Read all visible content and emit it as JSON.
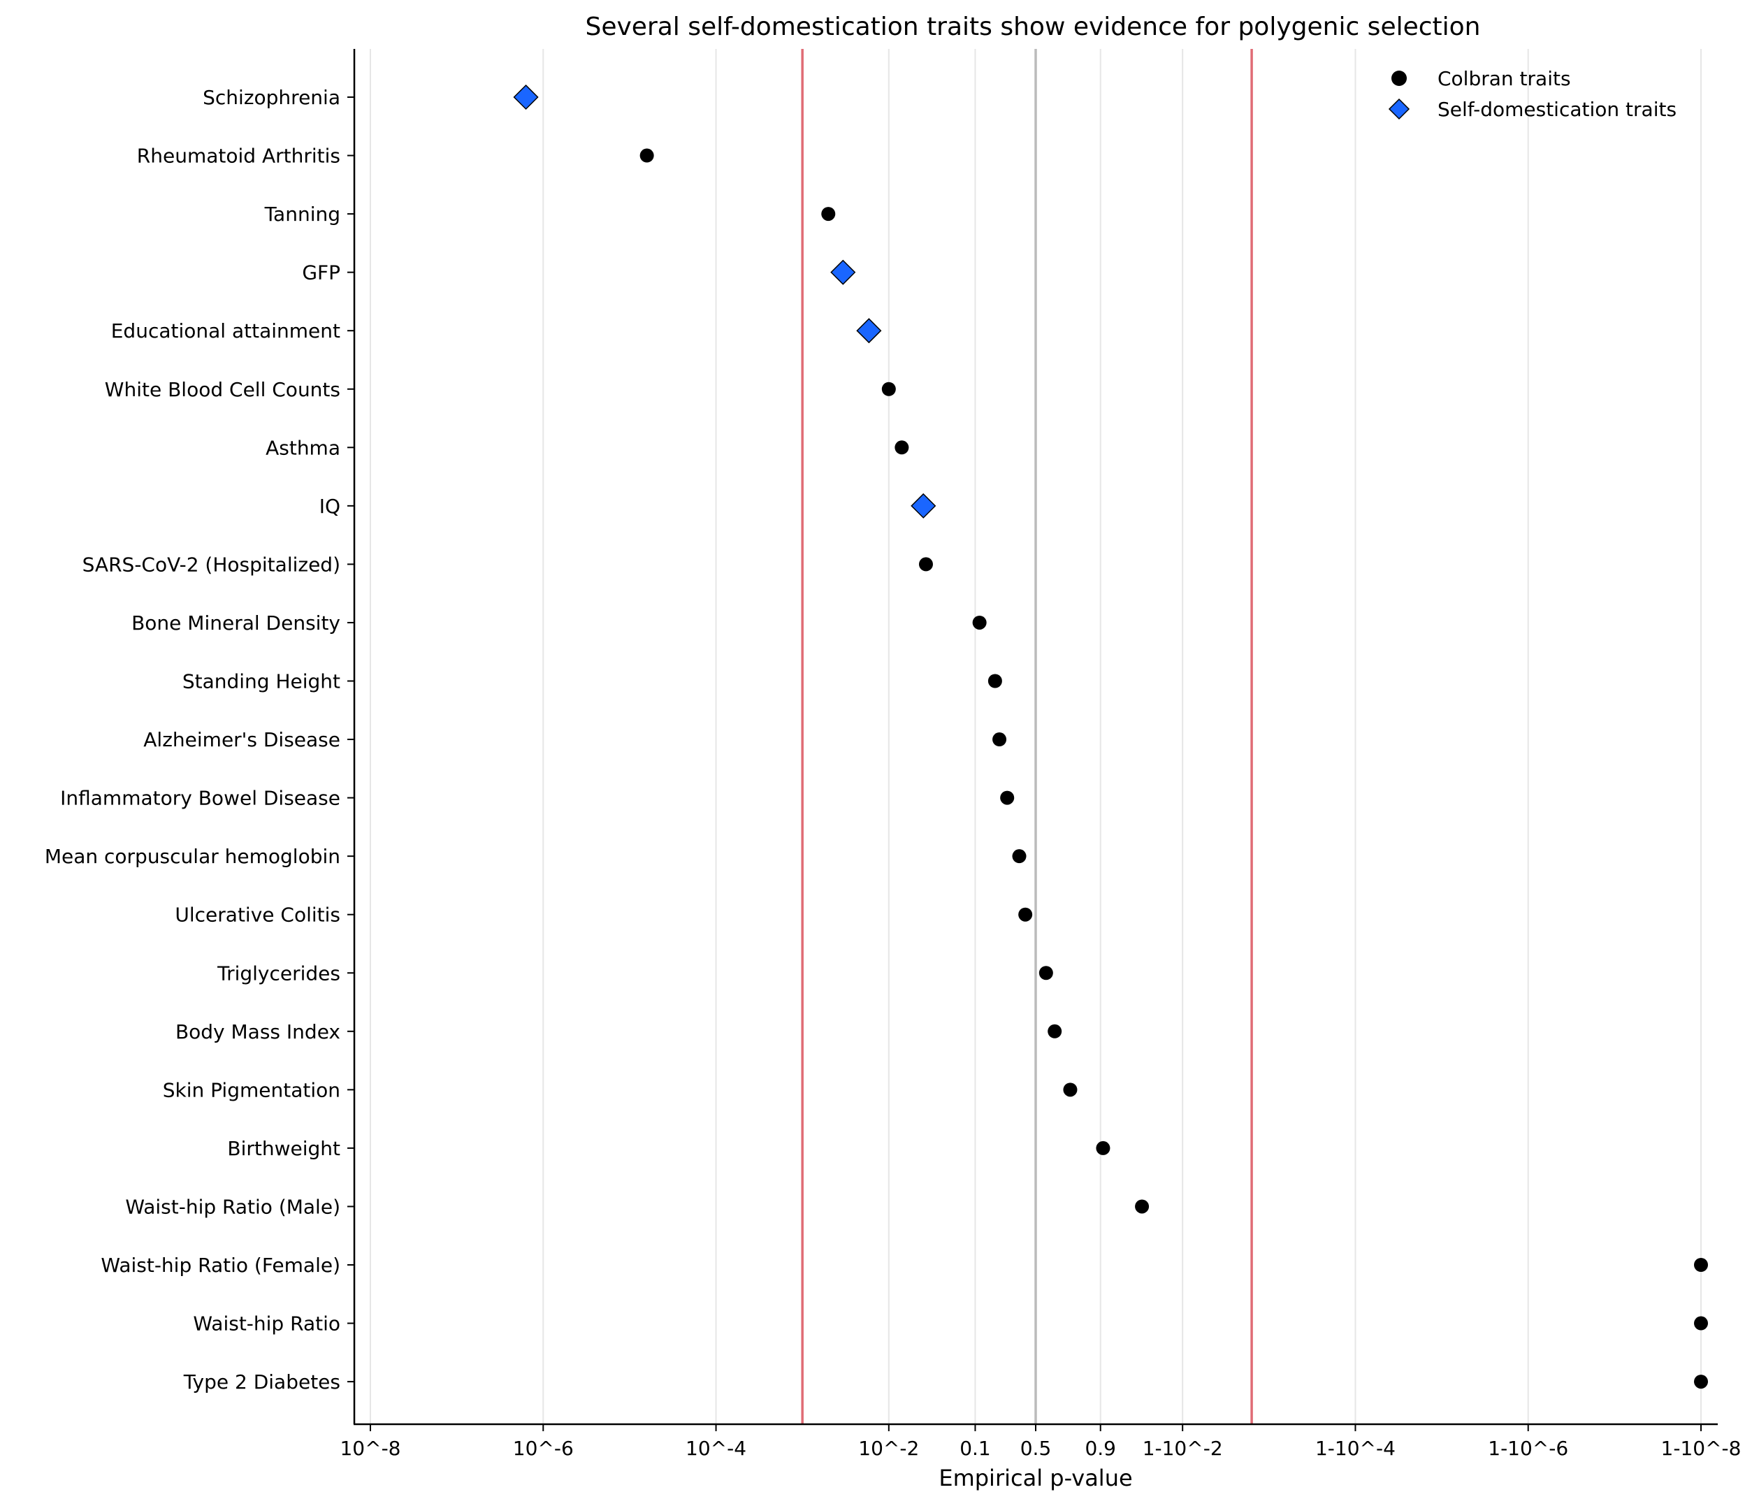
{
  "chart_data": {
    "type": "scatter",
    "title": "Several self-domestication traits show evidence for polygenic selection",
    "xlabel": "Empirical p-value",
    "ylabel": "",
    "x_scale": "log-odds",
    "xlim": [
      -8.1,
      8.1
    ],
    "xticks": [
      {
        "label": "10^-8",
        "value": -8
      },
      {
        "label": "10^-6",
        "value": -6
      },
      {
        "label": "10^-4",
        "value": -4
      },
      {
        "label": "10^-2",
        "value": -2
      },
      {
        "label": "0.1",
        "value": -1
      },
      {
        "label": "0.5",
        "value": -0.3
      },
      {
        "label": "0.9",
        "value": 0.45
      },
      {
        "label": "1-10^-2",
        "value": 1.4
      },
      {
        "label": "1-10^-4",
        "value": 3.4
      },
      {
        "label": "1-10^-6",
        "value": 5.4
      },
      {
        "label": "1-10^-8",
        "value": 7.4
      }
    ],
    "reference_lines": [
      {
        "value": -3.0,
        "color": "#e06c75",
        "kind": "threshold"
      },
      {
        "value": -0.3,
        "color": "#bbbbbb",
        "kind": "null"
      },
      {
        "value": 2.2,
        "color": "#e06c75",
        "kind": "threshold"
      }
    ],
    "categories": [
      "Schizophrenia",
      "Rheumatoid Arthritis",
      "Tanning",
      "GFP",
      "Educational attainment",
      "White Blood Cell Counts",
      "Asthma",
      "IQ",
      "SARS-CoV-2 (Hospitalized)",
      "Bone Mineral Density",
      "Standing Height",
      "Alzheimer's Disease",
      "Inflammatory Bowel Disease",
      "Mean corpuscular hemoglobin",
      "Ulcerative Colitis",
      "Triglycerides",
      "Body Mass Index",
      "Skin Pigmentation",
      "Birthweight",
      "Waist-hip Ratio (Male)",
      "Waist-hip Ratio (Female)",
      "Waist-hip Ratio",
      "Type 2 Diabetes"
    ],
    "series": [
      {
        "name": "Colbran traits",
        "marker": "circle",
        "color": "#000000",
        "points": [
          {
            "trait": "Rheumatoid Arthritis",
            "x": -4.8
          },
          {
            "trait": "Tanning",
            "x": -2.7
          },
          {
            "trait": "White Blood Cell Counts",
            "x": -2.0
          },
          {
            "trait": "Asthma",
            "x": -1.85
          },
          {
            "trait": "SARS-CoV-2 (Hospitalized)",
            "x": -1.57
          },
          {
            "trait": "Bone Mineral Density",
            "x": -0.95
          },
          {
            "trait": "Standing Height",
            "x": -0.77
          },
          {
            "trait": "Alzheimer's Disease",
            "x": -0.72
          },
          {
            "trait": "Inflammatory Bowel Disease",
            "x": -0.63
          },
          {
            "trait": "Mean corpuscular hemoglobin",
            "x": -0.49
          },
          {
            "trait": "Ulcerative Colitis",
            "x": -0.42
          },
          {
            "trait": "Triglycerides",
            "x": -0.18
          },
          {
            "trait": "Body Mass Index",
            "x": -0.08
          },
          {
            "trait": "Skin Pigmentation",
            "x": 0.1
          },
          {
            "trait": "Birthweight",
            "x": 0.48
          },
          {
            "trait": "Waist-hip Ratio (Male)",
            "x": 0.93
          },
          {
            "trait": "Waist-hip Ratio (Female)",
            "x": 7.4
          },
          {
            "trait": "Waist-hip Ratio",
            "x": 7.4
          },
          {
            "trait": "Type 2 Diabetes",
            "x": 7.4
          }
        ]
      },
      {
        "name": "Self-domestication traits",
        "marker": "diamond",
        "color": "#1a66ff",
        "points": [
          {
            "trait": "Schizophrenia",
            "x": -6.2
          },
          {
            "trait": "GFP",
            "x": -2.53
          },
          {
            "trait": "Educational attainment",
            "x": -2.23
          },
          {
            "trait": "IQ",
            "x": -1.6
          }
        ]
      }
    ],
    "legend": {
      "position": "top-right",
      "entries": [
        {
          "label": "Colbran traits",
          "marker": "circle",
          "color": "#000000"
        },
        {
          "label": "Self-domestication traits",
          "marker": "diamond",
          "color": "#1a66ff"
        }
      ]
    },
    "grid": "vertical"
  }
}
